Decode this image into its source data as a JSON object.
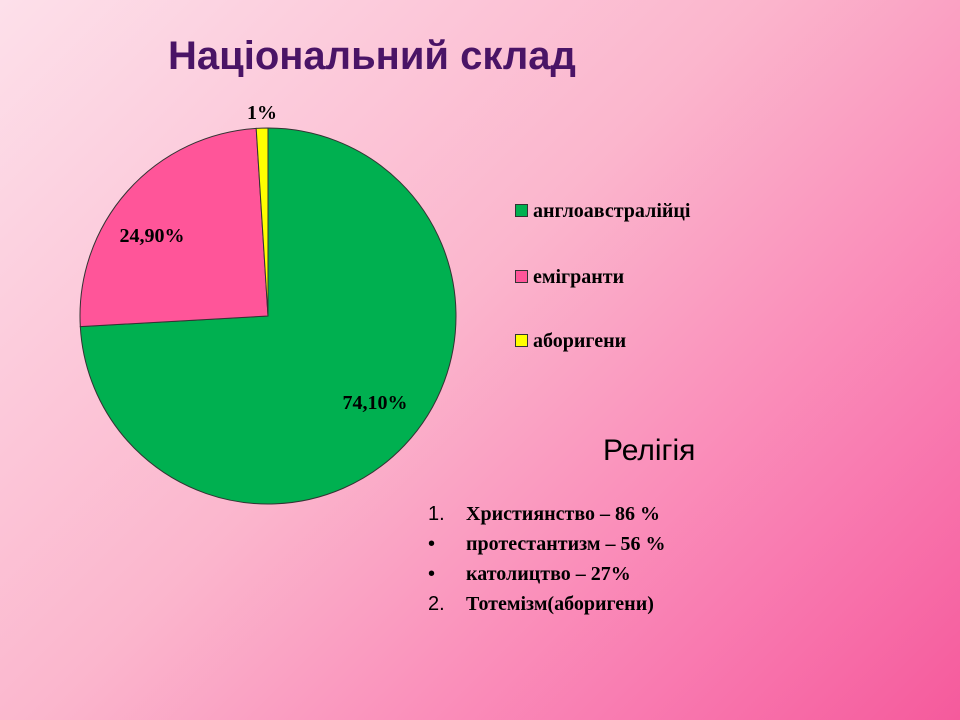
{
  "chart_data": {
    "type": "pie",
    "title": "Національний склад",
    "slices": [
      {
        "name": "англоавстралійці",
        "value": 74.1,
        "label": "74,10%",
        "color": "#00b050"
      },
      {
        "name": "емігранти",
        "value": 24.9,
        "label": "24,90%",
        "color": "#ff5599"
      },
      {
        "name": "аборигени",
        "value": 1,
        "label": "1%",
        "color": "#ffff00"
      }
    ],
    "legend_position": "right"
  },
  "religion": {
    "title": "Релігія",
    "items": [
      {
        "marker": "1.",
        "text": "Християнство – 86 %"
      },
      {
        "marker": "•",
        "text": "протестантизм – 56 %"
      },
      {
        "marker": "•",
        "text": "католицтво – 27%"
      },
      {
        "marker": "2.",
        "text": "Тотемізм(аборигени)"
      }
    ]
  }
}
